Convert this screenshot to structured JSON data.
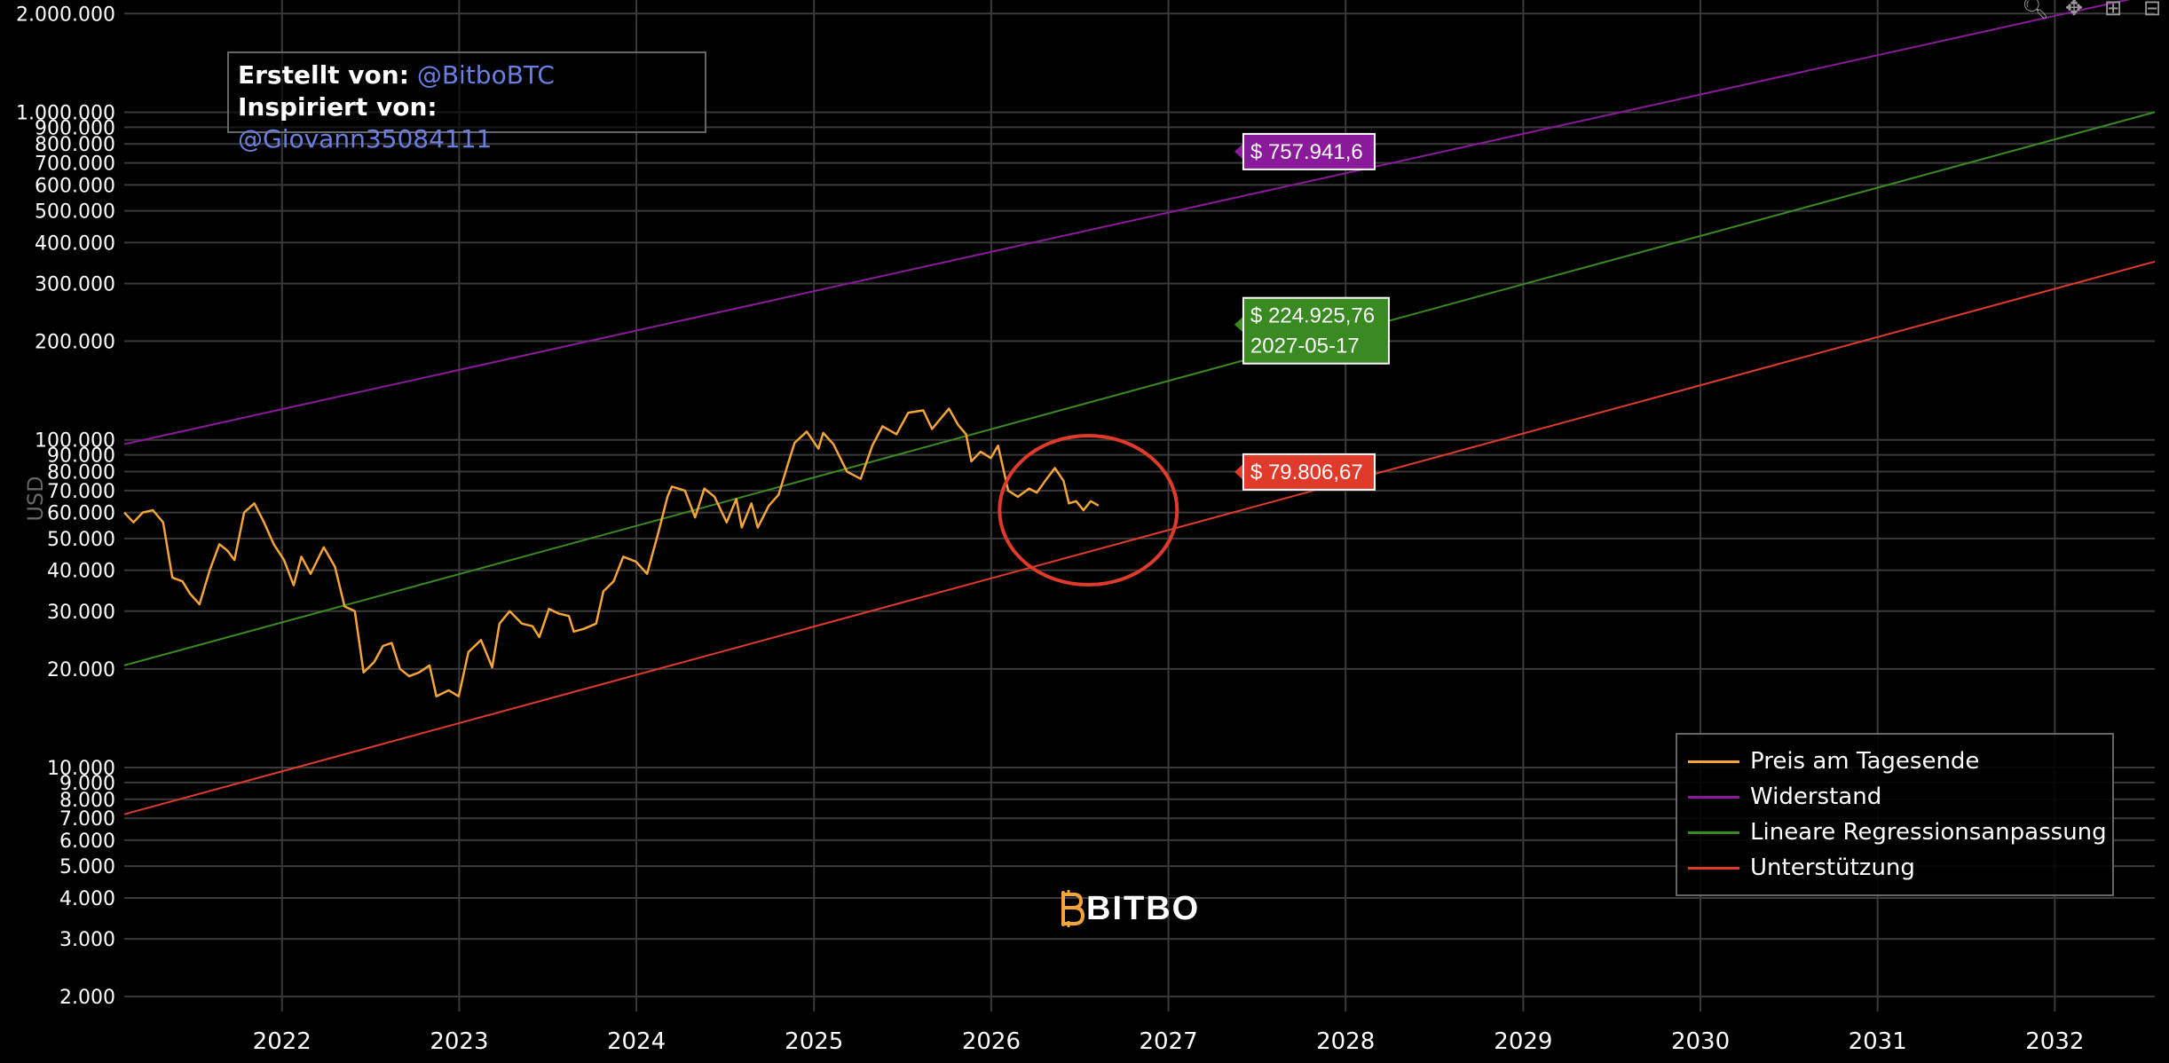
{
  "credits": {
    "created_label": "Erstellt von:",
    "created_handle": "@BitboBTC",
    "inspired_label": "Inspiriert von:",
    "inspired_handle": "@Giovann35084111"
  },
  "logo": {
    "text": "BITBO"
  },
  "colors": {
    "price": "#f5a43a",
    "resistance": "#8b1a9b",
    "regression": "#3a8a22",
    "support": "#e03a2a",
    "circle": "#e03a2a"
  },
  "chart_data": {
    "type": "line",
    "y_scale": "log",
    "ylabel": "USD",
    "xlim": [
      "2021-02-10",
      "2032-07-25"
    ],
    "ylim": [
      1800,
      2200000
    ],
    "y_ticks": [
      {
        "value": 2000,
        "label": "2.000"
      },
      {
        "value": 3000,
        "label": "3.000"
      },
      {
        "value": 4000,
        "label": "4.000"
      },
      {
        "value": 5000,
        "label": "5.000"
      },
      {
        "value": 6000,
        "label": "6.000"
      },
      {
        "value": 7000,
        "label": "7.000"
      },
      {
        "value": 8000,
        "label": "8.000"
      },
      {
        "value": 9000,
        "label": "9.000"
      },
      {
        "value": 10000,
        "label": "10.000"
      },
      {
        "value": 20000,
        "label": "20.000"
      },
      {
        "value": 30000,
        "label": "30.000"
      },
      {
        "value": 40000,
        "label": "40.000"
      },
      {
        "value": 50000,
        "label": "50.000"
      },
      {
        "value": 60000,
        "label": "60.000"
      },
      {
        "value": 70000,
        "label": "70.000"
      },
      {
        "value": 80000,
        "label": "80.000"
      },
      {
        "value": 90000,
        "label": "90.000"
      },
      {
        "value": 100000,
        "label": "100.000"
      },
      {
        "value": 200000,
        "label": "200.000"
      },
      {
        "value": 300000,
        "label": "300.000"
      },
      {
        "value": 400000,
        "label": "400.000"
      },
      {
        "value": 500000,
        "label": "500.000"
      },
      {
        "value": 600000,
        "label": "600.000"
      },
      {
        "value": 700000,
        "label": "700.000"
      },
      {
        "value": 800000,
        "label": "800.000"
      },
      {
        "value": 900000,
        "label": "900.000"
      },
      {
        "value": 1000000,
        "label": "1.000.000"
      },
      {
        "value": 2000000,
        "label": "2.000.000"
      }
    ],
    "x_ticks": [
      {
        "date": "2022-01-01",
        "label": "2022"
      },
      {
        "date": "2023-01-01",
        "label": "2023"
      },
      {
        "date": "2024-01-01",
        "label": "2024"
      },
      {
        "date": "2025-01-01",
        "label": "2025"
      },
      {
        "date": "2026-01-01",
        "label": "2026"
      },
      {
        "date": "2027-01-01",
        "label": "2027"
      },
      {
        "date": "2028-01-01",
        "label": "2028"
      },
      {
        "date": "2029-01-01",
        "label": "2029"
      },
      {
        "date": "2030-01-01",
        "label": "2030"
      },
      {
        "date": "2031-01-01",
        "label": "2031"
      },
      {
        "date": "2032-01-01",
        "label": "2032"
      }
    ],
    "legend": {
      "position": "bottom-right",
      "entries": [
        {
          "name": "Preis am Tagesende",
          "color": "#f5a43a"
        },
        {
          "name": "Widerstand",
          "color": "#8b1a9b"
        },
        {
          "name": "Lineare Regressionsanpassung",
          "color": "#3a8a22"
        },
        {
          "name": "Unterstützung",
          "color": "#e03a2a"
        }
      ]
    },
    "series": [
      {
        "name": "Widerstand",
        "kind": "trend",
        "color": "#8b1a9b",
        "points": [
          [
            "2021-02-10",
            97000
          ],
          [
            "2032-07-25",
            2300000
          ]
        ]
      },
      {
        "name": "Lineare Regressionsanpassung",
        "kind": "trend",
        "color": "#3a8a22",
        "points": [
          [
            "2021-02-10",
            20500
          ],
          [
            "2032-07-25",
            1000000
          ]
        ]
      },
      {
        "name": "Unterstützung",
        "kind": "trend",
        "color": "#e03a2a",
        "points": [
          [
            "2021-02-10",
            7200
          ],
          [
            "2032-07-25",
            350000
          ]
        ]
      },
      {
        "name": "Preis am Tagesende",
        "kind": "price",
        "color": "#f5a43a",
        "points": [
          [
            "2021-02-10",
            60000
          ],
          [
            "2021-03-01",
            56000
          ],
          [
            "2021-03-20",
            60000
          ],
          [
            "2021-04-10",
            61000
          ],
          [
            "2021-05-01",
            56000
          ],
          [
            "2021-05-20",
            38000
          ],
          [
            "2021-06-10",
            37000
          ],
          [
            "2021-06-25",
            34000
          ],
          [
            "2021-07-15",
            31500
          ],
          [
            "2021-08-05",
            40000
          ],
          [
            "2021-08-25",
            48000
          ],
          [
            "2021-09-10",
            46000
          ],
          [
            "2021-09-25",
            43000
          ],
          [
            "2021-10-15",
            60000
          ],
          [
            "2021-11-05",
            64000
          ],
          [
            "2021-11-25",
            56000
          ],
          [
            "2021-12-15",
            48000
          ],
          [
            "2022-01-05",
            43000
          ],
          [
            "2022-01-25",
            36000
          ],
          [
            "2022-02-10",
            44000
          ],
          [
            "2022-03-01",
            39000
          ],
          [
            "2022-03-28",
            47000
          ],
          [
            "2022-04-20",
            41000
          ],
          [
            "2022-05-10",
            31000
          ],
          [
            "2022-05-31",
            30000
          ],
          [
            "2022-06-18",
            19500
          ],
          [
            "2022-07-10",
            21000
          ],
          [
            "2022-07-28",
            23500
          ],
          [
            "2022-08-15",
            24000
          ],
          [
            "2022-09-01",
            20000
          ],
          [
            "2022-09-20",
            19000
          ],
          [
            "2022-10-10",
            19500
          ],
          [
            "2022-11-01",
            20500
          ],
          [
            "2022-11-15",
            16500
          ],
          [
            "2022-12-10",
            17200
          ],
          [
            "2022-12-31",
            16500
          ],
          [
            "2023-01-20",
            22500
          ],
          [
            "2023-02-15",
            24500
          ],
          [
            "2023-03-10",
            20200
          ],
          [
            "2023-03-25",
            27500
          ],
          [
            "2023-04-15",
            30000
          ],
          [
            "2023-05-10",
            27500
          ],
          [
            "2023-06-01",
            27000
          ],
          [
            "2023-06-15",
            25000
          ],
          [
            "2023-07-05",
            30500
          ],
          [
            "2023-07-25",
            29500
          ],
          [
            "2023-08-15",
            29000
          ],
          [
            "2023-08-25",
            26000
          ],
          [
            "2023-09-15",
            26500
          ],
          [
            "2023-10-10",
            27500
          ],
          [
            "2023-10-25",
            34500
          ],
          [
            "2023-11-15",
            37000
          ],
          [
            "2023-12-05",
            44000
          ],
          [
            "2023-12-31",
            42500
          ],
          [
            "2024-01-23",
            39000
          ],
          [
            "2024-02-15",
            52000
          ],
          [
            "2024-03-05",
            67000
          ],
          [
            "2024-03-14",
            72000
          ],
          [
            "2024-04-10",
            70000
          ],
          [
            "2024-05-01",
            58000
          ],
          [
            "2024-05-20",
            71000
          ],
          [
            "2024-06-10",
            67000
          ],
          [
            "2024-07-05",
            56000
          ],
          [
            "2024-07-25",
            66000
          ],
          [
            "2024-08-05",
            54000
          ],
          [
            "2024-08-25",
            64000
          ],
          [
            "2024-09-07",
            54000
          ],
          [
            "2024-09-30",
            63000
          ],
          [
            "2024-10-20",
            68000
          ],
          [
            "2024-11-12",
            88000
          ],
          [
            "2024-11-22",
            98000
          ],
          [
            "2024-12-17",
            106000
          ],
          [
            "2025-01-10",
            94000
          ],
          [
            "2025-01-20",
            105000
          ],
          [
            "2025-02-10",
            97000
          ],
          [
            "2025-03-10",
            80000
          ],
          [
            "2025-04-07",
            76000
          ],
          [
            "2025-05-01",
            96000
          ],
          [
            "2025-05-22",
            110000
          ],
          [
            "2025-06-20",
            104000
          ],
          [
            "2025-07-14",
            121000
          ],
          [
            "2025-08-14",
            123000
          ],
          [
            "2025-09-01",
            108000
          ],
          [
            "2025-10-06",
            124500
          ],
          [
            "2025-10-25",
            111000
          ],
          [
            "2025-11-10",
            104000
          ],
          [
            "2025-11-21",
            86000
          ],
          [
            "2025-12-10",
            92000
          ],
          [
            "2025-12-31",
            88000
          ],
          [
            "2026-01-15",
            96000
          ],
          [
            "2026-02-05",
            70000
          ],
          [
            "2026-02-25",
            67000
          ],
          [
            "2026-03-20",
            71000
          ],
          [
            "2026-04-05",
            69000
          ],
          [
            "2026-04-25",
            76000
          ],
          [
            "2026-05-12",
            82000
          ],
          [
            "2026-05-30",
            75000
          ],
          [
            "2026-06-10",
            64000
          ],
          [
            "2026-06-25",
            65000
          ],
          [
            "2026-07-10",
            61000
          ],
          [
            "2026-07-25",
            65000
          ],
          [
            "2026-08-10",
            63000
          ]
        ]
      }
    ],
    "annotations": [
      {
        "series": "Widerstand",
        "label": "$ 757.941,6",
        "date": "2027-05-17",
        "value": 757941.6,
        "color": "#8b1a9b"
      },
      {
        "series": "Lineare Regressionsanpassung",
        "label": "$ 224.925,76",
        "sublabel": "2027-05-17",
        "date": "2027-05-17",
        "value": 224925.76,
        "color": "#3a8a22"
      },
      {
        "series": "Unterstützung",
        "label": "$ 79.806,67",
        "date": "2027-05-17",
        "value": 79806.67,
        "color": "#e03a2a"
      }
    ],
    "highlight_circle": {
      "center_date": "2026-07-20",
      "center_value": 61000
    }
  }
}
